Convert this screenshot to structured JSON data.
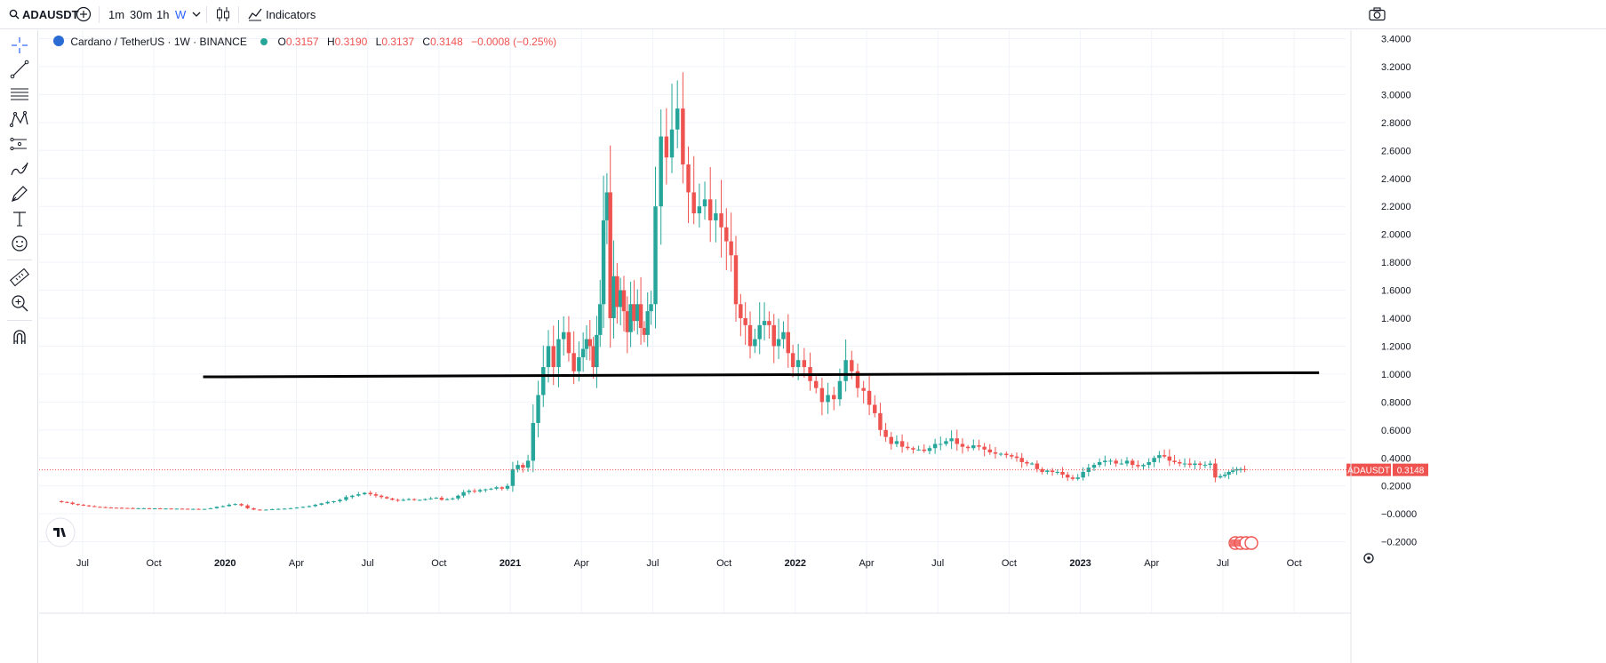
{
  "toolbar": {
    "symbol": "ADAUSDT",
    "intervals": [
      "1m",
      "30m",
      "1h",
      "W"
    ],
    "active_interval": "W",
    "indicators_label": "Indicators",
    "icons": [
      "search-icon",
      "add-symbol-icon",
      "chevron-down-icon",
      "candles-icon",
      "indicators-icon",
      "camera-icon"
    ]
  },
  "left_toolbar": {
    "tools": [
      "crosshair-icon",
      "trend-line-icon",
      "fib-lines-icon",
      "pattern-icon",
      "forecast-icon",
      "brush-icon",
      "pen-icon",
      "text-icon",
      "emoji-icon",
      "ruler-icon",
      "zoom-icon",
      "magnet-icon"
    ]
  },
  "legend": {
    "title": "Cardano / TetherUS · 1W · BINANCE",
    "o_label": "O",
    "o": "0.3157",
    "h_label": "H",
    "h": "0.3190",
    "l_label": "L",
    "l": "0.3137",
    "c_label": "C",
    "c": "0.3148",
    "change": "−0.0008 (−0.25%)"
  },
  "price_tag": {
    "symbol": "ADAUSDT",
    "value": "0.3148"
  },
  "colors": {
    "up": "#26a69a",
    "down": "#ef5350",
    "accent": "#2962ff",
    "drawn_line": "#000000"
  },
  "chart_data": {
    "type": "candlestick",
    "title": "Cardano / TetherUS · 1W · BINANCE",
    "y_ticks": [
      "3.4000",
      "3.2000",
      "3.0000",
      "2.8000",
      "2.6000",
      "2.4000",
      "2.2000",
      "2.0000",
      "1.8000",
      "1.6000",
      "1.4000",
      "1.2000",
      "1.0000",
      "0.8000",
      "0.6000",
      "0.4000",
      "0.2000",
      "−0.0000",
      "−0.2000"
    ],
    "ylim": [
      -0.25,
      3.42
    ],
    "x_ticks": [
      "Jul",
      "Oct",
      "2020",
      "Apr",
      "Jul",
      "Oct",
      "2021",
      "Apr",
      "Jul",
      "Oct",
      "2022",
      "Apr",
      "Jul",
      "Oct",
      "2023",
      "Apr",
      "Jul",
      "Oct"
    ],
    "x_ticks_bold": [
      "2020",
      "2021",
      "2022",
      "2023"
    ],
    "grid": true,
    "last_price": 0.3148,
    "horizontal_line": {
      "from": "2019-12",
      "to": "2023-10",
      "y_start": 0.98,
      "y_end": 1.01
    },
    "series": [
      {
        "from": "2019-06",
        "to": "2019-12",
        "path": [
          0.09,
          0.085,
          0.08,
          0.07,
          0.065,
          0.06,
          0.055,
          0.05,
          0.048,
          0.045,
          0.044,
          0.043,
          0.042,
          0.041,
          0.04,
          0.04,
          0.04,
          0.039,
          0.039,
          0.038,
          0.038,
          0.037,
          0.037,
          0.036,
          0.035,
          0.035,
          0.034
        ]
      },
      {
        "from": "2019-12",
        "to": "2020-07",
        "path": [
          0.034,
          0.035,
          0.04,
          0.05,
          0.055,
          0.065,
          0.07,
          0.06,
          0.04,
          0.03,
          0.028,
          0.03,
          0.033,
          0.035,
          0.037,
          0.04,
          0.045,
          0.05,
          0.055,
          0.065,
          0.075,
          0.085,
          0.09,
          0.1,
          0.12,
          0.13,
          0.14,
          0.15
        ]
      },
      {
        "from": "2020-07",
        "to": "2021-01",
        "path": [
          0.15,
          0.14,
          0.13,
          0.12,
          0.11,
          0.1,
          0.095,
          0.1,
          0.105,
          0.1,
          0.1,
          0.105,
          0.11,
          0.115,
          0.1,
          0.105,
          0.11,
          0.13,
          0.155,
          0.165,
          0.16,
          0.17,
          0.175,
          0.18,
          0.19,
          0.18,
          0.2
        ]
      },
      {
        "from": "2021-01",
        "to": "2021-04",
        "path": [
          0.2,
          0.32,
          0.35,
          0.33,
          0.38,
          0.65,
          0.85,
          1.05,
          1.2,
          1.05,
          1.25,
          1.3,
          1.15,
          1.02,
          1.12
        ]
      },
      {
        "from": "2021-04",
        "to": "2021-07",
        "path": [
          1.12,
          1.18,
          1.25,
          1.2,
          1.05,
          1.28,
          1.5,
          2.1,
          2.3,
          1.4,
          1.7,
          1.48,
          1.6,
          1.45,
          1.3,
          1.5,
          1.38,
          1.5,
          1.33,
          1.28,
          1.45,
          1.5
        ]
      },
      {
        "from": "2021-07",
        "to": "2021-10",
        "path": [
          1.5,
          2.2,
          2.7,
          2.55,
          2.75,
          2.9,
          2.5,
          2.3,
          2.15,
          2.2,
          2.25,
          2.1,
          2.15,
          2.05
        ]
      },
      {
        "from": "2021-10",
        "to": "2022-01",
        "path": [
          2.05,
          1.95,
          1.85,
          1.5,
          1.4,
          1.35,
          1.2,
          1.25,
          1.35,
          1.38,
          1.35,
          1.2,
          1.25,
          1.3,
          1.15,
          1.05
        ]
      },
      {
        "from": "2022-01",
        "to": "2022-04",
        "path": [
          1.05,
          1.1,
          1.05,
          0.95,
          0.9,
          0.8,
          0.85,
          0.82,
          0.95,
          1.1,
          1.02,
          0.9,
          0.88
        ]
      },
      {
        "from": "2022-04",
        "to": "2022-07",
        "path": [
          0.88,
          0.78,
          0.72,
          0.6,
          0.55,
          0.5,
          0.52,
          0.48,
          0.47,
          0.46,
          0.46,
          0.45,
          0.47,
          0.5
        ]
      },
      {
        "from": "2022-07",
        "to": "2022-10",
        "path": [
          0.5,
          0.5,
          0.52,
          0.54,
          0.5,
          0.48,
          0.47,
          0.49,
          0.48,
          0.46,
          0.44,
          0.43,
          0.43,
          0.42
        ]
      },
      {
        "from": "2022-10",
        "to": "2023-01",
        "path": [
          0.42,
          0.41,
          0.4,
          0.37,
          0.36,
          0.36,
          0.32,
          0.3,
          0.31,
          0.3,
          0.3,
          0.28,
          0.26,
          0.25,
          0.26
        ]
      },
      {
        "from": "2023-01",
        "to": "2023-04",
        "path": [
          0.26,
          0.3,
          0.33,
          0.35,
          0.37,
          0.38,
          0.38,
          0.36,
          0.36,
          0.38,
          0.35,
          0.34,
          0.35,
          0.37
        ]
      },
      {
        "from": "2023-04",
        "to": "2023-07",
        "path": [
          0.37,
          0.4,
          0.42,
          0.41,
          0.38,
          0.37,
          0.36,
          0.36,
          0.35,
          0.36,
          0.35,
          0.35,
          0.36,
          0.26,
          0.27
        ]
      },
      {
        "from": "2023-07",
        "to": "2023-08",
        "path": [
          0.27,
          0.28,
          0.3,
          0.31,
          0.32,
          0.32,
          0.315
        ]
      }
    ]
  }
}
